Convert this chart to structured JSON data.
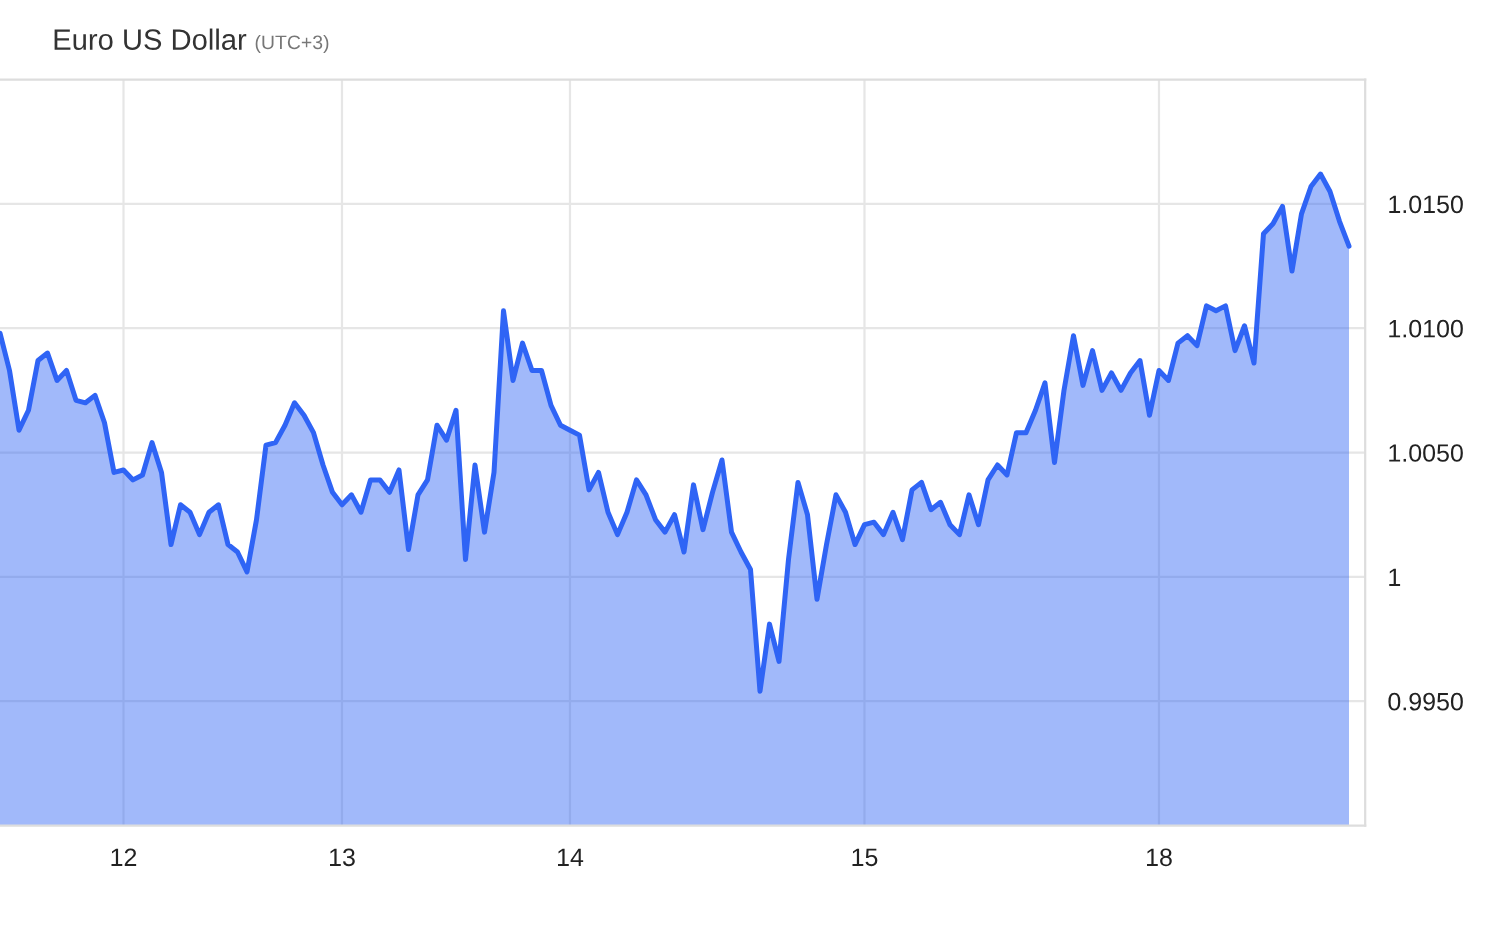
{
  "chart_data": {
    "type": "area",
    "title": "Euro US Dollar",
    "subtitle": "(UTC+3)",
    "categories": [
      null,
      null,
      null,
      null,
      null,
      null,
      null,
      null,
      null,
      null,
      null,
      null,
      null,
      "12",
      null,
      null,
      null,
      null,
      null,
      null,
      null,
      null,
      null,
      null,
      null,
      null,
      null,
      null,
      null,
      null,
      null,
      null,
      null,
      null,
      null,
      null,
      "13",
      null,
      null,
      null,
      null,
      null,
      null,
      null,
      null,
      null,
      null,
      null,
      null,
      null,
      null,
      null,
      null,
      null,
      null,
      null,
      null,
      null,
      null,
      null,
      "14",
      null,
      null,
      null,
      null,
      null,
      null,
      null,
      null,
      null,
      null,
      null,
      null,
      null,
      null,
      null,
      null,
      null,
      null,
      null,
      null,
      null,
      null,
      null,
      null,
      null,
      null,
      null,
      null,
      null,
      null,
      "15",
      null,
      null,
      null,
      null,
      null,
      null,
      null,
      null,
      null,
      null,
      null,
      null,
      null,
      null,
      null,
      null,
      null,
      null,
      null,
      null,
      null,
      null,
      null,
      null,
      null,
      null,
      null,
      null,
      null,
      null,
      "18",
      null,
      null,
      null,
      null,
      null,
      null,
      null,
      null,
      null,
      null,
      null,
      null,
      null,
      null,
      null,
      null,
      null,
      null,
      null,
      null
    ],
    "series": [
      {
        "color": "#2f64f5",
        "values": [
          1.0098,
          1.0083,
          1.0059,
          1.0067,
          1.0087,
          1.009,
          1.0079,
          1.0083,
          1.0071,
          1.007,
          1.0073,
          1.0062,
          1.0042,
          1.0043,
          1.0039,
          1.0041,
          1.0054,
          1.0042,
          1.0013,
          1.0029,
          1.0026,
          1.0017,
          1.0026,
          1.0029,
          1.0013,
          1.001,
          1.0002,
          1.0023,
          1.0053,
          1.0054,
          1.0061,
          1.007,
          1.0065,
          1.0058,
          1.0045,
          1.0034,
          1.0029,
          1.0033,
          1.0026,
          1.0039,
          1.0039,
          1.0034,
          1.0043,
          1.0011,
          1.0033,
          1.0039,
          1.0061,
          1.0055,
          1.0067,
          1.0007,
          1.0045,
          1.0018,
          1.0042,
          1.0107,
          1.0079,
          1.0094,
          1.0083,
          1.0083,
          1.0069,
          1.0061,
          1.0059,
          1.0057,
          1.0035,
          1.0042,
          1.0026,
          1.0017,
          1.0026,
          1.0039,
          1.0033,
          1.0023,
          1.0018,
          1.0025,
          1.001,
          1.0037,
          1.0019,
          1.0034,
          1.0047,
          1.0018,
          1.001,
          1.0003,
          0.9954,
          0.9981,
          0.9966,
          1.0007,
          1.0038,
          1.0025,
          0.9991,
          1.0013,
          1.0033,
          1.0026,
          1.0013,
          1.0021,
          1.0022,
          1.0017,
          1.0026,
          1.0015,
          1.0035,
          1.0038,
          1.0027,
          1.003,
          1.0021,
          1.0017,
          1.0033,
          1.0021,
          1.0039,
          1.0045,
          1.0041,
          1.0058,
          1.0058,
          1.0067,
          1.0078,
          1.0046,
          1.0075,
          1.0097,
          1.0077,
          1.0091,
          1.0075,
          1.0082,
          1.0075,
          1.0082,
          1.0087,
          1.0065,
          1.0083,
          1.0079,
          1.0094,
          1.0097,
          1.0093,
          1.0109,
          1.0107,
          1.0109,
          1.0091,
          1.0101,
          1.0086,
          1.0138,
          1.0142,
          1.0149,
          1.0123,
          1.0146,
          1.0157,
          1.0162,
          1.0155,
          1.0143,
          1.0133
        ]
      }
    ],
    "ylim": [
      0.99,
      1.02
    ],
    "yticks": [
      {
        "value": 0.995,
        "label": "0.9950"
      },
      1,
      {
        "value": 1.005,
        "label": "1.0050"
      },
      {
        "value": 1.01,
        "label": "1.0100"
      },
      {
        "value": 1.015,
        "label": "1.0150"
      }
    ],
    "grid": true
  }
}
